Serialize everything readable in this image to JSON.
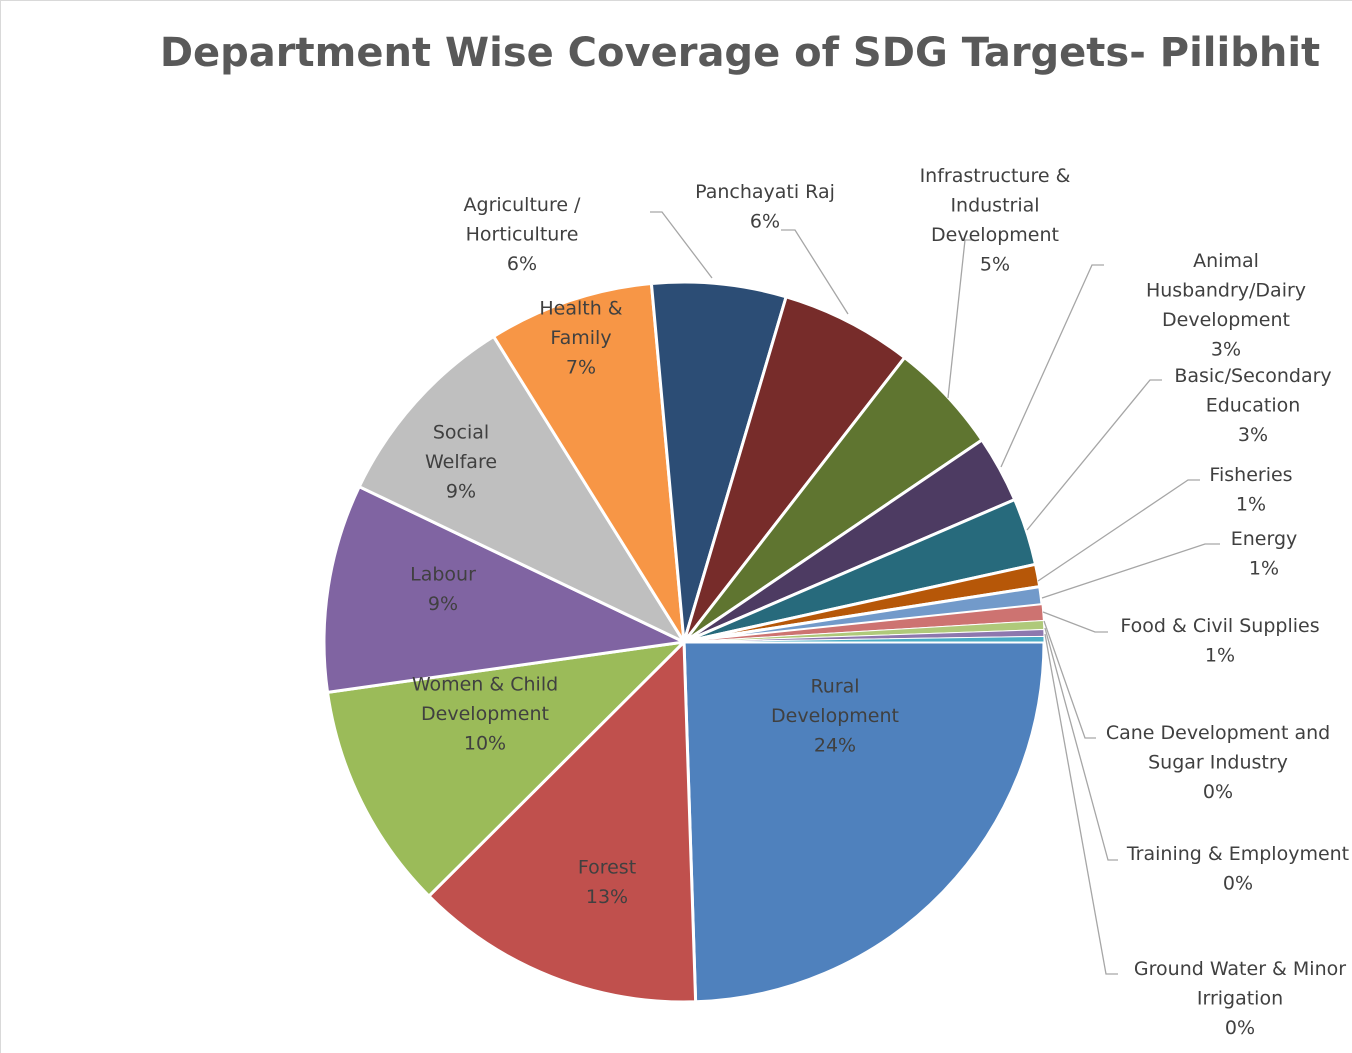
{
  "chart_data": {
    "type": "pie",
    "title": "Department Wise Coverage of SDG Targets- Pilibhit",
    "legend": "none",
    "slices": [
      {
        "name": "Rural Development",
        "value": 24.4,
        "percent_label": "24%",
        "color": "#4F81BD"
      },
      {
        "name": "Forest",
        "value": 13.0,
        "percent_label": "13%",
        "color": "#C0504D"
      },
      {
        "name": "Women & Child Development",
        "value": 10.2,
        "percent_label": "10%",
        "color": "#9BBB59"
      },
      {
        "name": "Labour",
        "value": 9.3,
        "percent_label": "9%",
        "color": "#8064A2"
      },
      {
        "name": "Social Welfare",
        "value": 9.0,
        "percent_label": "9%",
        "color": "#BFBFBF"
      },
      {
        "name": "Health & Family",
        "value": 7.4,
        "percent_label": "7%",
        "color": "#F79646"
      },
      {
        "name": "Agriculture / Horticulture",
        "value": 6.0,
        "percent_label": "6%",
        "color": "#2C4D75"
      },
      {
        "name": "Panchayati Raj",
        "value": 5.9,
        "percent_label": "6%",
        "color": "#772C2A"
      },
      {
        "name": "Infrastructure & Industrial Development",
        "value": 5.0,
        "percent_label": "5%",
        "color": "#5F7530"
      },
      {
        "name": "Animal Husbandry/Dairy Development",
        "value": 3.0,
        "percent_label": "3%",
        "color": "#4D3B62"
      },
      {
        "name": "Basic/Secondary Education",
        "value": 3.0,
        "percent_label": "3%",
        "color": "#276A7C"
      },
      {
        "name": "Fisheries",
        "value": 1.0,
        "percent_label": "1%",
        "color": "#B65708"
      },
      {
        "name": "Energy",
        "value": 0.8,
        "percent_label": "1%",
        "color": "#729ACA"
      },
      {
        "name": "Food & Civil Supplies",
        "value": 0.7,
        "percent_label": "1%",
        "color": "#CD7371"
      },
      {
        "name": "Cane Development and Sugar Industry",
        "value": 0.4,
        "percent_label": "0%",
        "color": "#AFC97A"
      },
      {
        "name": "Training & Employment",
        "value": 0.3,
        "percent_label": "0%",
        "color": "#8D78AE"
      },
      {
        "name": "Ground Water & Minor Irrigation",
        "value": 0.25,
        "percent_label": "0%",
        "color": "#4BACC6"
      }
    ]
  }
}
